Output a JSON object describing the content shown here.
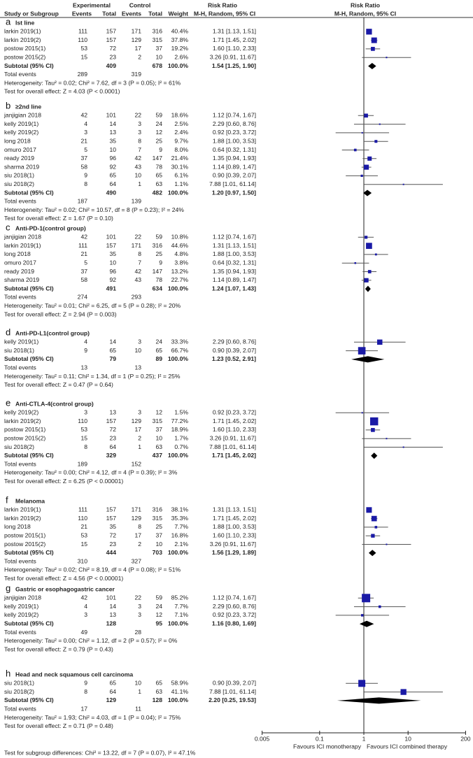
{
  "chart_data": {
    "type": "forest",
    "x_scale": "log",
    "xlim": [
      0.005,
      200
    ],
    "x_ticks": [
      "0.005",
      "0.1",
      "1",
      "10",
      "200"
    ],
    "favours_left": "Favours ICI monotherapy",
    "favours_right": "Favours ICI combined therapy",
    "colors": {
      "study_marker": "#1a1aa6",
      "ci_line": "#555555",
      "diamond": "#000000"
    },
    "headers": {
      "study": "Study or Subgroup",
      "experimental": "Experimental",
      "control": "Control",
      "events": "Events",
      "total": "Total",
      "weight": "Weight",
      "rr_title": "Risk Ratio",
      "rr_method": "M-H, Random, 95% CI"
    },
    "subtotal_label": "Subtotal (95% CI)",
    "total_events_label": "Total events",
    "subgroups": [
      {
        "letter": "a",
        "title": "Ist line",
        "studies": [
          {
            "name": "larkin 2019(1)",
            "e_ev": "111",
            "e_tot": "157",
            "c_ev": "171",
            "c_tot": "316",
            "weight": "40.4%",
            "ci": "1.31 [1.13, 1.51]",
            "rr": 1.31,
            "lo": 1.13,
            "hi": 1.51,
            "w": 40.4
          },
          {
            "name": "larkin 2019(2)",
            "e_ev": "110",
            "e_tot": "157",
            "c_ev": "129",
            "c_tot": "315",
            "weight": "37.8%",
            "ci": "1.71 [1.45, 2.02]",
            "rr": 1.71,
            "lo": 1.45,
            "hi": 2.02,
            "w": 37.8
          },
          {
            "name": "postow 2015(1)",
            "e_ev": "53",
            "e_tot": "72",
            "c_ev": "17",
            "c_tot": "37",
            "weight": "19.2%",
            "ci": "1.60 [1.10, 2.33]",
            "rr": 1.6,
            "lo": 1.1,
            "hi": 2.33,
            "w": 19.2
          },
          {
            "name": "postow 2015(2)",
            "e_ev": "15",
            "e_tot": "23",
            "c_ev": "2",
            "c_tot": "10",
            "weight": "2.6%",
            "ci": "3.26 [0.91, 11.67]",
            "rr": 3.26,
            "lo": 0.91,
            "hi": 11.67,
            "w": 2.6
          }
        ],
        "subtotal": {
          "e_tot": "409",
          "c_tot": "678",
          "weight": "100.0%",
          "ci": "1.54 [1.25, 1.90]",
          "rr": 1.54,
          "lo": 1.25,
          "hi": 1.9
        },
        "total_events": {
          "e": "289",
          "c": "319"
        },
        "heterogeneity": "Heterogeneity: Tau² = 0.02; Chi² = 7.62, df = 3 (P = 0.05); I² = 61%",
        "overall": "Test for overall effect: Z = 4.03 (P < 0.0001)"
      },
      {
        "letter": "b",
        "title": "≥2nd line",
        "studies": [
          {
            "name": "janjigian 2018",
            "e_ev": "42",
            "e_tot": "101",
            "c_ev": "22",
            "c_tot": "59",
            "weight": "18.6%",
            "ci": "1.12 [0.74, 1.67]",
            "rr": 1.12,
            "lo": 0.74,
            "hi": 1.67,
            "w": 18.6
          },
          {
            "name": "kelly 2019(1)",
            "e_ev": "4",
            "e_tot": "14",
            "c_ev": "3",
            "c_tot": "24",
            "weight": "2.5%",
            "ci": "2.29 [0.60, 8.76]",
            "rr": 2.29,
            "lo": 0.6,
            "hi": 8.76,
            "w": 2.5
          },
          {
            "name": "kelly 2019(2)",
            "e_ev": "3",
            "e_tot": "13",
            "c_ev": "3",
            "c_tot": "12",
            "weight": "2.4%",
            "ci": "0.92 [0.23, 3.72]",
            "rr": 0.92,
            "lo": 0.23,
            "hi": 3.72,
            "w": 2.4
          },
          {
            "name": "long 2018",
            "e_ev": "21",
            "e_tot": "35",
            "c_ev": "8",
            "c_tot": "25",
            "weight": "9.7%",
            "ci": "1.88 [1.00, 3.53]",
            "rr": 1.88,
            "lo": 1.0,
            "hi": 3.53,
            "w": 9.7
          },
          {
            "name": "omuro 2017",
            "e_ev": "5",
            "e_tot": "10",
            "c_ev": "7",
            "c_tot": "9",
            "weight": "8.0%",
            "ci": "0.64 [0.32, 1.31]",
            "rr": 0.64,
            "lo": 0.32,
            "hi": 1.31,
            "w": 8.0
          },
          {
            "name": "ready 2019",
            "e_ev": "37",
            "e_tot": "96",
            "c_ev": "42",
            "c_tot": "147",
            "weight": "21.4%",
            "ci": "1.35 [0.94, 1.93]",
            "rr": 1.35,
            "lo": 0.94,
            "hi": 1.93,
            "w": 21.4
          },
          {
            "name": "sharma 2019",
            "e_ev": "58",
            "e_tot": "92",
            "c_ev": "43",
            "c_tot": "78",
            "weight": "30.1%",
            "ci": "1.14 [0.89, 1.47]",
            "rr": 1.14,
            "lo": 0.89,
            "hi": 1.47,
            "w": 30.1
          },
          {
            "name": "siu 2018(1)",
            "e_ev": "9",
            "e_tot": "65",
            "c_ev": "10",
            "c_tot": "65",
            "weight": "6.1%",
            "ci": "0.90 [0.39, 2.07]",
            "rr": 0.9,
            "lo": 0.39,
            "hi": 2.07,
            "w": 6.1
          },
          {
            "name": "siu 2018(2)",
            "e_ev": "8",
            "e_tot": "64",
            "c_ev": "1",
            "c_tot": "63",
            "weight": "1.1%",
            "ci": "7.88 [1.01, 61.14]",
            "rr": 7.88,
            "lo": 1.01,
            "hi": 61.14,
            "w": 1.1
          }
        ],
        "subtotal": {
          "e_tot": "490",
          "c_tot": "482",
          "weight": "100.0%",
          "ci": "1.20 [0.97, 1.50]",
          "rr": 1.2,
          "lo": 0.97,
          "hi": 1.5
        },
        "total_events": {
          "e": "187",
          "c": "139"
        },
        "heterogeneity": "Heterogeneity: Tau² = 0.02; Chi² = 10.57, df = 8 (P = 0.23); I² = 24%",
        "overall": "Test for overall effect: Z = 1.67 (P = 0.10)"
      },
      {
        "letter": "c",
        "title": "Anti-PD-1(control group)",
        "studies": [
          {
            "name": "janjigian 2018",
            "e_ev": "42",
            "e_tot": "101",
            "c_ev": "22",
            "c_tot": "59",
            "weight": "10.8%",
            "ci": "1.12 [0.74, 1.67]",
            "rr": 1.12,
            "lo": 0.74,
            "hi": 1.67,
            "w": 10.8
          },
          {
            "name": "larkin 2019(1)",
            "e_ev": "111",
            "e_tot": "157",
            "c_ev": "171",
            "c_tot": "316",
            "weight": "44.6%",
            "ci": "1.31 [1.13, 1.51]",
            "rr": 1.31,
            "lo": 1.13,
            "hi": 1.51,
            "w": 44.6
          },
          {
            "name": "long 2018",
            "e_ev": "21",
            "e_tot": "35",
            "c_ev": "8",
            "c_tot": "25",
            "weight": "4.8%",
            "ci": "1.88 [1.00, 3.53]",
            "rr": 1.88,
            "lo": 1.0,
            "hi": 3.53,
            "w": 4.8
          },
          {
            "name": "omuro 2017",
            "e_ev": "5",
            "e_tot": "10",
            "c_ev": "7",
            "c_tot": "9",
            "weight": "3.8%",
            "ci": "0.64 [0.32, 1.31]",
            "rr": 0.64,
            "lo": 0.32,
            "hi": 1.31,
            "w": 3.8
          },
          {
            "name": "ready 2019",
            "e_ev": "37",
            "e_tot": "96",
            "c_ev": "42",
            "c_tot": "147",
            "weight": "13.2%",
            "ci": "1.35 [0.94, 1.93]",
            "rr": 1.35,
            "lo": 0.94,
            "hi": 1.93,
            "w": 13.2
          },
          {
            "name": "sharma 2019",
            "e_ev": "58",
            "e_tot": "92",
            "c_ev": "43",
            "c_tot": "78",
            "weight": "22.7%",
            "ci": "1.14 [0.89, 1.47]",
            "rr": 1.14,
            "lo": 0.89,
            "hi": 1.47,
            "w": 22.7
          }
        ],
        "subtotal": {
          "e_tot": "491",
          "c_tot": "634",
          "weight": "100.0%",
          "ci": "1.24 [1.07, 1.43]",
          "rr": 1.24,
          "lo": 1.07,
          "hi": 1.43
        },
        "total_events": {
          "e": "274",
          "c": "293"
        },
        "heterogeneity": "Heterogeneity: Tau² = 0.01; Chi² = 6.25, df = 5 (P = 0.28); I² = 20%",
        "overall": "Test for overall effect: Z = 2.94 (P = 0.003)"
      },
      {
        "letter": "d",
        "title": "Anti-PD-L1(control group)",
        "studies": [
          {
            "name": "kelly 2019(1)",
            "e_ev": "4",
            "e_tot": "14",
            "c_ev": "3",
            "c_tot": "24",
            "weight": "33.3%",
            "ci": "2.29 [0.60, 8.76]",
            "rr": 2.29,
            "lo": 0.6,
            "hi": 8.76,
            "w": 33.3
          },
          {
            "name": "siu 2018(1)",
            "e_ev": "9",
            "e_tot": "65",
            "c_ev": "10",
            "c_tot": "65",
            "weight": "66.7%",
            "ci": "0.90 [0.39, 2.07]",
            "rr": 0.9,
            "lo": 0.39,
            "hi": 2.07,
            "w": 66.7
          }
        ],
        "subtotal": {
          "e_tot": "79",
          "c_tot": "89",
          "weight": "100.0%",
          "ci": "1.23 [0.52, 2.91]",
          "rr": 1.23,
          "lo": 0.52,
          "hi": 2.91
        },
        "total_events": {
          "e": "13",
          "c": "13"
        },
        "heterogeneity": "Heterogeneity: Tau² = 0.11; Chi² = 1.34, df = 1 (P = 0.25); I² = 25%",
        "overall": "Test for overall effect: Z = 0.47 (P = 0.64)"
      },
      {
        "letter": "e",
        "title": "Anti-CTLA-4(control group)",
        "studies": [
          {
            "name": "kelly 2019(2)",
            "e_ev": "3",
            "e_tot": "13",
            "c_ev": "3",
            "c_tot": "12",
            "weight": "1.5%",
            "ci": "0.92 [0.23, 3.72]",
            "rr": 0.92,
            "lo": 0.23,
            "hi": 3.72,
            "w": 1.5
          },
          {
            "name": "larkin 2019(2)",
            "e_ev": "110",
            "e_tot": "157",
            "c_ev": "129",
            "c_tot": "315",
            "weight": "77.2%",
            "ci": "1.71 [1.45, 2.02]",
            "rr": 1.71,
            "lo": 1.45,
            "hi": 2.02,
            "w": 77.2
          },
          {
            "name": "postow 2015(1)",
            "e_ev": "53",
            "e_tot": "72",
            "c_ev": "17",
            "c_tot": "37",
            "weight": "18.9%",
            "ci": "1.60 [1.10, 2.33]",
            "rr": 1.6,
            "lo": 1.1,
            "hi": 2.33,
            "w": 18.9
          },
          {
            "name": "postow 2015(2)",
            "e_ev": "15",
            "e_tot": "23",
            "c_ev": "2",
            "c_tot": "10",
            "weight": "1.7%",
            "ci": "3.26 [0.91, 11.67]",
            "rr": 3.26,
            "lo": 0.91,
            "hi": 11.67,
            "w": 1.7
          },
          {
            "name": "siu 2018(2)",
            "e_ev": "8",
            "e_tot": "64",
            "c_ev": "1",
            "c_tot": "63",
            "weight": "0.7%",
            "ci": "7.88 [1.01, 61.14]",
            "rr": 7.88,
            "lo": 1.01,
            "hi": 61.14,
            "w": 0.7
          }
        ],
        "subtotal": {
          "e_tot": "329",
          "c_tot": "437",
          "weight": "100.0%",
          "ci": "1.71 [1.45, 2.02]",
          "rr": 1.71,
          "lo": 1.45,
          "hi": 2.02
        },
        "total_events": {
          "e": "189",
          "c": "152"
        },
        "heterogeneity": "Heterogeneity: Tau² = 0.00; Chi² = 4.12, df = 4 (P = 0.39); I² = 3%",
        "overall": "Test for overall effect: Z = 6.25 (P < 0.00001)"
      },
      {
        "letter": "f",
        "title": "Melanoma",
        "studies": [
          {
            "name": "larkin 2019(1)",
            "e_ev": "111",
            "e_tot": "157",
            "c_ev": "171",
            "c_tot": "316",
            "weight": "38.1%",
            "ci": "1.31 [1.13, 1.51]",
            "rr": 1.31,
            "lo": 1.13,
            "hi": 1.51,
            "w": 38.1
          },
          {
            "name": "larkin 2019(2)",
            "e_ev": "110",
            "e_tot": "157",
            "c_ev": "129",
            "c_tot": "315",
            "weight": "35.3%",
            "ci": "1.71 [1.45, 2.02]",
            "rr": 1.71,
            "lo": 1.45,
            "hi": 2.02,
            "w": 35.3
          },
          {
            "name": "long 2018",
            "e_ev": "21",
            "e_tot": "35",
            "c_ev": "8",
            "c_tot": "25",
            "weight": "7.7%",
            "ci": "1.88 [1.00, 3.53]",
            "rr": 1.88,
            "lo": 1.0,
            "hi": 3.53,
            "w": 7.7
          },
          {
            "name": "postow 2015(1)",
            "e_ev": "53",
            "e_tot": "72",
            "c_ev": "17",
            "c_tot": "37",
            "weight": "16.8%",
            "ci": "1.60 [1.10, 2.33]",
            "rr": 1.6,
            "lo": 1.1,
            "hi": 2.33,
            "w": 16.8
          },
          {
            "name": "postow 2015(2)",
            "e_ev": "15",
            "e_tot": "23",
            "c_ev": "2",
            "c_tot": "10",
            "weight": "2.1%",
            "ci": "3.26 [0.91, 11.67]",
            "rr": 3.26,
            "lo": 0.91,
            "hi": 11.67,
            "w": 2.1
          }
        ],
        "subtotal": {
          "e_tot": "444",
          "c_tot": "703",
          "weight": "100.0%",
          "ci": "1.56 [1.29, 1.89]",
          "rr": 1.56,
          "lo": 1.29,
          "hi": 1.89
        },
        "total_events": {
          "e": "310",
          "c": "327"
        },
        "heterogeneity": "Heterogeneity: Tau² = 0.02; Chi² = 8.19, df = 4 (P = 0.08); I² = 51%",
        "overall": "Test for overall effect: Z = 4.56 (P < 0.00001)"
      },
      {
        "letter": "g",
        "title": "Gastric or esophagogastric cancer",
        "studies": [
          {
            "name": "janjigian 2018",
            "e_ev": "42",
            "e_tot": "101",
            "c_ev": "22",
            "c_tot": "59",
            "weight": "85.2%",
            "ci": "1.12 [0.74, 1.67]",
            "rr": 1.12,
            "lo": 0.74,
            "hi": 1.67,
            "w": 85.2
          },
          {
            "name": "kelly 2019(1)",
            "e_ev": "4",
            "e_tot": "14",
            "c_ev": "3",
            "c_tot": "24",
            "weight": "7.7%",
            "ci": "2.29 [0.60, 8.76]",
            "rr": 2.29,
            "lo": 0.6,
            "hi": 8.76,
            "w": 7.7
          },
          {
            "name": "kelly 2019(2)",
            "e_ev": "3",
            "e_tot": "13",
            "c_ev": "3",
            "c_tot": "12",
            "weight": "7.1%",
            "ci": "0.92 [0.23, 3.72]",
            "rr": 0.92,
            "lo": 0.23,
            "hi": 3.72,
            "w": 7.1
          }
        ],
        "subtotal": {
          "e_tot": "128",
          "c_tot": "95",
          "weight": "100.0%",
          "ci": "1.16 [0.80, 1.69]",
          "rr": 1.16,
          "lo": 0.8,
          "hi": 1.69
        },
        "total_events": {
          "e": "49",
          "c": "28"
        },
        "heterogeneity": "Heterogeneity: Tau² = 0.00; Chi² = 1.12, df = 2 (P = 0.57); I² = 0%",
        "overall": "Test for overall effect: Z = 0.79 (P = 0.43)"
      },
      {
        "letter": "h",
        "title": "Head and neck squamous cell carcinoma",
        "studies": [
          {
            "name": "siu 2018(1)",
            "e_ev": "9",
            "e_tot": "65",
            "c_ev": "10",
            "c_tot": "65",
            "weight": "58.9%",
            "ci": "0.90 [0.39, 2.07]",
            "rr": 0.9,
            "lo": 0.39,
            "hi": 2.07,
            "w": 58.9
          },
          {
            "name": "siu 2018(2)",
            "e_ev": "8",
            "e_tot": "64",
            "c_ev": "1",
            "c_tot": "63",
            "weight": "41.1%",
            "ci": "7.88 [1.01, 61.14]",
            "rr": 7.88,
            "lo": 1.01,
            "hi": 61.14,
            "w": 41.1
          }
        ],
        "subtotal": {
          "e_tot": "129",
          "c_tot": "128",
          "weight": "100.0%",
          "ci": "2.20 [0.25, 19.53]",
          "rr": 2.2,
          "lo": 0.25,
          "hi": 19.53
        },
        "total_events": {
          "e": "17",
          "c": "11"
        },
        "heterogeneity": "Heterogeneity: Tau² = 1.93; Chi² = 4.03, df = 1 (P = 0.04); I² = 75%",
        "overall": "Test for overall effect: Z = 0.71 (P = 0.48)"
      }
    ],
    "subgroup_differences": "Test for subgroup differences: Chi² = 13.22, df = 7 (P = 0.07), I² = 47.1%"
  }
}
